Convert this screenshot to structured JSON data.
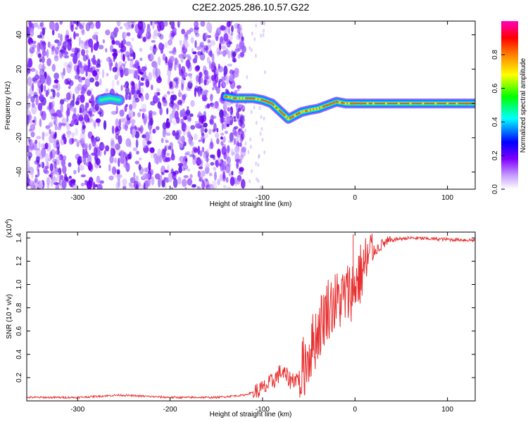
{
  "figure_title": "C2E2.2025.286.10.57.G22",
  "chart_data": [
    {
      "type": "heatmap",
      "title": "C2E2.2025.286.10.57.G22",
      "xlabel": "Height of straight line (km)",
      "ylabel": "Frequency (Hz)",
      "xlim": [
        -355,
        130
      ],
      "ylim": [
        -50,
        48
      ],
      "x_ticks": [
        -300,
        -200,
        -100,
        0,
        100
      ],
      "y_ticks": [
        -40,
        -20,
        0,
        20,
        40
      ],
      "x_tick_labels": [
        "-300",
        "-200",
        "-100",
        "0",
        "100"
      ],
      "y_tick_labels": [
        "-40",
        "-20",
        "0",
        "20",
        "40"
      ],
      "noise_region_x": [
        -355,
        -120
      ],
      "signal_track": [
        {
          "x": -275,
          "y": 2
        },
        {
          "x": -265,
          "y": 3
        },
        {
          "x": -255,
          "y": 2
        },
        {
          "x": -140,
          "y": 4
        },
        {
          "x": -130,
          "y": 3
        },
        {
          "x": -120,
          "y": 3
        },
        {
          "x": -110,
          "y": 3
        },
        {
          "x": -100,
          "y": 2
        },
        {
          "x": -90,
          "y": 0
        },
        {
          "x": -80,
          "y": -5
        },
        {
          "x": -72,
          "y": -9
        },
        {
          "x": -65,
          "y": -7
        },
        {
          "x": -58,
          "y": -5
        },
        {
          "x": -50,
          "y": -4
        },
        {
          "x": -40,
          "y": -3
        },
        {
          "x": -30,
          "y": -1
        },
        {
          "x": -20,
          "y": 1
        },
        {
          "x": -10,
          "y": 0
        },
        {
          "x": 0,
          "y": 0
        },
        {
          "x": 20,
          "y": 0
        },
        {
          "x": 60,
          "y": 0
        },
        {
          "x": 100,
          "y": 0
        },
        {
          "x": 130,
          "y": 0
        }
      ],
      "colorbar": {
        "label": "Normalized spectral amplitude",
        "ticks": [
          "0.0",
          "0.2",
          "0.4",
          "0.6",
          "0.8"
        ],
        "tick_values": [
          0.0,
          0.2,
          0.4,
          0.6,
          0.8
        ],
        "range": [
          0,
          1
        ],
        "colors": [
          "#ffffff",
          "#8000ff",
          "#0000ff",
          "#00ffff",
          "#00ff00",
          "#ffff00",
          "#ff8000",
          "#ff0000",
          "#ff00ff"
        ]
      }
    },
    {
      "type": "line",
      "xlabel": "Height of straight line (km)",
      "ylabel": "SNR (10 * v/v)",
      "y_multiplier_base": "(x10",
      "y_multiplier_exp": "4",
      "y_multiplier_close": ")",
      "xlim": [
        -355,
        130
      ],
      "ylim": [
        0,
        1.45
      ],
      "x_ticks": [
        -300,
        -200,
        -100,
        0,
        100
      ],
      "y_ticks": [
        0.2,
        0.4,
        0.6,
        0.8,
        1.0,
        1.2,
        1.4
      ],
      "x_tick_labels": [
        "-300",
        "-200",
        "-100",
        "0",
        "100"
      ],
      "y_tick_labels": [
        "0.2",
        "0.4",
        "0.6",
        "0.8",
        "1.0",
        "1.2",
        "1.4"
      ],
      "line_color": "#e83030",
      "series": [
        {
          "name": "SNR",
          "points": [
            {
              "x": -355,
              "y": 0.03
            },
            {
              "x": -300,
              "y": 0.03
            },
            {
              "x": -255,
              "y": 0.05
            },
            {
              "x": -200,
              "y": 0.03
            },
            {
              "x": -150,
              "y": 0.03
            },
            {
              "x": -120,
              "y": 0.05
            },
            {
              "x": -100,
              "y": 0.1
            },
            {
              "x": -90,
              "y": 0.16
            },
            {
              "x": -80,
              "y": 0.25
            },
            {
              "x": -70,
              "y": 0.18
            },
            {
              "x": -60,
              "y": 0.2
            },
            {
              "x": -50,
              "y": 0.4
            },
            {
              "x": -40,
              "y": 0.6
            },
            {
              "x": -30,
              "y": 0.8
            },
            {
              "x": -20,
              "y": 0.85
            },
            {
              "x": -10,
              "y": 0.9
            },
            {
              "x": 0,
              "y": 1.0
            },
            {
              "x": 10,
              "y": 1.15
            },
            {
              "x": 20,
              "y": 1.28
            },
            {
              "x": 30,
              "y": 1.35
            },
            {
              "x": 45,
              "y": 1.39
            },
            {
              "x": 60,
              "y": 1.4
            },
            {
              "x": 90,
              "y": 1.39
            },
            {
              "x": 130,
              "y": 1.38
            }
          ]
        }
      ],
      "annotation_peak": {
        "x": -2,
        "y": 1.43
      }
    }
  ]
}
